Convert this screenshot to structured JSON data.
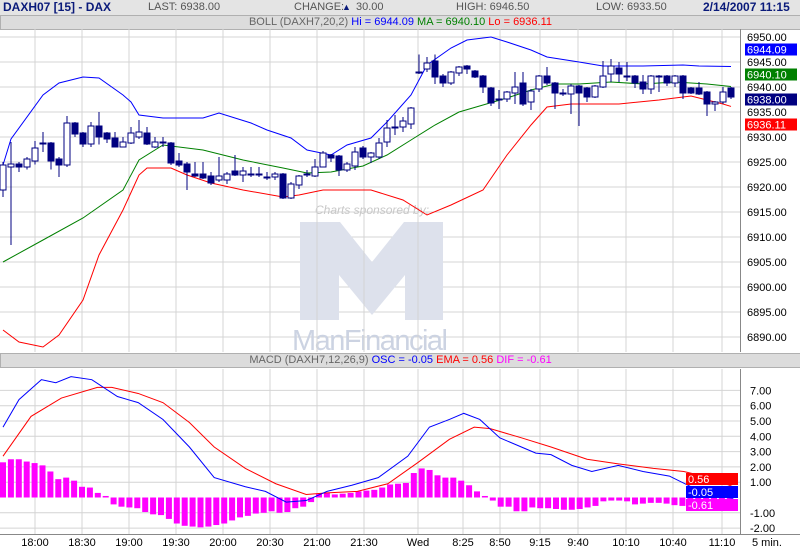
{
  "header": {
    "symbol": "DAXH07 [15] - DAX",
    "last": "LAST: 6938.00",
    "change_label": "CHANGE:",
    "change_value": "30.00",
    "high": "HIGH: 6946.50",
    "low": "LOW: 6933.50",
    "datetime": "2/14/2007 11:15"
  },
  "boll_legend": {
    "name": "BOLL (DAXH7,20,2)",
    "hi": "Hi = 6944.09",
    "ma": "MA = 6940.10",
    "lo": "Lo = 6936.11"
  },
  "macd_legend": {
    "name": "MACD (DAXH7,12,26,9)",
    "osc": "OSC = -0.05",
    "ema": "EMA = 0.56",
    "dif": "DIF = -0.61"
  },
  "price_axis": [
    "6950.00",
    "6945.00",
    "6940.00",
    "6935.00",
    "6930.00",
    "6925.00",
    "6920.00",
    "6915.00",
    "6910.00",
    "6905.00",
    "6900.00",
    "6895.00",
    "6890.00"
  ],
  "price_markers": {
    "hi": "6944.09",
    "ma": "6940.10",
    "last": "6938.00",
    "lo": "6936.11"
  },
  "macd_axis": [
    "7.00",
    "6.00",
    "5.00",
    "4.00",
    "3.00",
    "2.00",
    "1.00",
    "-1.00",
    "-2.00"
  ],
  "macd_markers": {
    "ema": "0.56",
    "osc": "-0.05",
    "dif": "-0.61"
  },
  "time_axis": [
    "18:00",
    "18:30",
    "19:00",
    "19:30",
    "20:00",
    "20:30",
    "21:00",
    "21:30",
    "Wed",
    "8:25",
    "8:50",
    "9:15",
    "9:40",
    "10:10",
    "10:40",
    "11:10"
  ],
  "interval": "5 min.",
  "watermark": {
    "caption": "Charts sponsored by:",
    "brand": "ManFinancial"
  },
  "colors": {
    "hi": "#0000ff",
    "ma": "#008000",
    "lo": "#ff0000",
    "candle": "#000080",
    "dif": "#ff00ff"
  },
  "chart_data": {
    "type": "candlestick",
    "ylim": [
      6887,
      6953
    ],
    "candles_ohlc": [
      [
        6919.4,
        6925,
        6918,
        6924.4
      ],
      [
        6924,
        6929,
        6908.4,
        6924.6
      ],
      [
        6924.6,
        6925,
        6923,
        6924
      ],
      [
        6924,
        6926,
        6923.5,
        6925.6
      ],
      [
        6925.2,
        6929.2,
        6924.5,
        6927.8
      ],
      [
        6928.8,
        6931,
        6927,
        6928.8
      ],
      [
        6928.8,
        6929,
        6923.5,
        6925.2
      ],
      [
        6925.6,
        6926,
        6922,
        6924.4
      ],
      [
        6924.4,
        6934.2,
        6924,
        6932.8
      ],
      [
        6932.8,
        6933,
        6930,
        6930.6
      ],
      [
        6930.8,
        6931,
        6928,
        6928.6
      ],
      [
        6928.6,
        6933,
        6928,
        6932.2
      ],
      [
        6932.2,
        6935,
        6928.5,
        6930
      ],
      [
        6930.8,
        6931,
        6928.8,
        6929.6
      ],
      [
        6929.8,
        6931,
        6928,
        6928
      ],
      [
        6928,
        6930,
        6928,
        6929
      ],
      [
        6928.8,
        6932,
        6928.6,
        6930.8
      ],
      [
        6930,
        6933.4,
        6929.6,
        6931
      ],
      [
        6930.8,
        6932,
        6928.4,
        6928.6
      ],
      [
        6928,
        6930,
        6927.8,
        6929
      ],
      [
        6929,
        6930,
        6928,
        6928.8
      ],
      [
        6928.8,
        6929,
        6924.4,
        6924.8
      ],
      [
        6925.2,
        6926.8,
        6924,
        6924.4
      ],
      [
        6924.6,
        6925,
        6919.4,
        6923
      ],
      [
        6922.6,
        6925,
        6922,
        6922.2
      ],
      [
        6922.6,
        6925,
        6921.6,
        6921.8
      ],
      [
        6922.2,
        6923,
        6920.4,
        6920.8
      ],
      [
        6921.4,
        6926,
        6921,
        6922.2
      ],
      [
        6921.4,
        6923,
        6920.6,
        6922.6
      ],
      [
        6923.2,
        6926.4,
        6922.2,
        6922.4
      ],
      [
        6922.4,
        6924,
        6921,
        6923.2
      ],
      [
        6922.6,
        6924,
        6922,
        6922.6
      ],
      [
        6922.6,
        6924,
        6922,
        6922.6
      ],
      [
        6922,
        6923,
        6921.4,
        6922
      ],
      [
        6922,
        6923,
        6921.4,
        6922.6
      ],
      [
        6922.6,
        6922.8,
        6917.6,
        6917.8
      ],
      [
        6917.8,
        6921,
        6917.6,
        6920.6
      ],
      [
        6920.4,
        6922.4,
        6919.6,
        6922.2
      ],
      [
        6922.6,
        6923.4,
        6922,
        6922.6
      ],
      [
        6922.2,
        6925.6,
        6922,
        6924
      ],
      [
        6924,
        6927.2,
        6924,
        6926.8
      ],
      [
        6926.4,
        6926.6,
        6925,
        6925.8
      ],
      [
        6926.2,
        6926.4,
        6922.2,
        6923.4
      ],
      [
        6923.4,
        6925,
        6923,
        6924.6
      ],
      [
        6924.2,
        6928,
        6923.4,
        6927
      ],
      [
        6927.8,
        6928.2,
        6925.6,
        6926
      ],
      [
        6926,
        6927,
        6924.8,
        6926.8
      ],
      [
        6926,
        6929.8,
        6925.6,
        6928.8
      ],
      [
        6929,
        6933.4,
        6928,
        6931.8
      ],
      [
        6932,
        6934.4,
        6930.4,
        6932
      ],
      [
        6932,
        6934,
        6931,
        6933.2
      ],
      [
        6932.6,
        6936,
        6931.6,
        6935.8
      ],
      [
        6943,
        6946.5,
        6942.6,
        6943
      ],
      [
        6943.6,
        6946,
        6943,
        6944.8
      ],
      [
        6945.2,
        6946.5,
        6940.6,
        6942
      ],
      [
        6942.2,
        6942.6,
        6940,
        6940.8
      ],
      [
        6940.8,
        6943.2,
        6940.4,
        6943
      ],
      [
        6942.8,
        6944.2,
        6942.2,
        6944
      ],
      [
        6944.2,
        6944.4,
        6942.6,
        6943.6
      ],
      [
        6943.2,
        6943.4,
        6941.8,
        6942
      ],
      [
        6942.2,
        6942.4,
        6938.8,
        6940
      ],
      [
        6939.8,
        6940,
        6936.2,
        6936.8
      ],
      [
        6937.6,
        6939.4,
        6935.6,
        6937.6
      ],
      [
        6937.6,
        6939.2,
        6937,
        6939
      ],
      [
        6938.8,
        6943,
        6936.6,
        6940
      ],
      [
        6940.8,
        6943,
        6936.2,
        6936.6
      ],
      [
        6937,
        6939.6,
        6935.4,
        6939.2
      ],
      [
        6939.6,
        6942.4,
        6939,
        6942.2
      ],
      [
        6942.2,
        6944,
        6940.4,
        6940.8
      ],
      [
        6940.8,
        6941,
        6935.6,
        6938.8
      ],
      [
        6938.8,
        6939.6,
        6938.2,
        6938.8
      ],
      [
        6938.6,
        6940.6,
        6934.6,
        6940.2
      ],
      [
        6940.2,
        6940.4,
        6932.2,
        6938.8
      ],
      [
        6939.8,
        6940,
        6937,
        6938
      ],
      [
        6938,
        6940.4,
        6937.8,
        6940.2
      ],
      [
        6940,
        6945.2,
        6939.8,
        6942.2
      ],
      [
        6942.6,
        6945.6,
        6941,
        6944.2
      ],
      [
        6943.8,
        6945,
        6941,
        6942.6
      ],
      [
        6942.2,
        6945,
        6941.2,
        6942.2
      ],
      [
        6942.2,
        6942.4,
        6939.8,
        6940.8
      ],
      [
        6941,
        6942.4,
        6938.6,
        6939.6
      ],
      [
        6939.6,
        6942.4,
        6938.6,
        6942.2
      ],
      [
        6942.2,
        6942.4,
        6939,
        6942.2
      ],
      [
        6942.2,
        6942.4,
        6940.2,
        6940.8
      ],
      [
        6940.8,
        6942.4,
        6940,
        6942.2
      ],
      [
        6942.2,
        6942.4,
        6937.6,
        6938.8
      ],
      [
        6939.8,
        6940,
        6938.6,
        6938.8
      ],
      [
        6939.8,
        6941,
        6938.4,
        6938.6
      ],
      [
        6939,
        6939.2,
        6934.2,
        6936.6
      ],
      [
        6936.6,
        6937.2,
        6935.2,
        6937
      ],
      [
        6937,
        6940,
        6936.6,
        6939
      ],
      [
        6939.8,
        6940,
        6937.6,
        6938
      ]
    ],
    "boll_hi": [
      [
        0,
        6924.4
      ],
      [
        1,
        6929.6
      ],
      [
        5,
        6938.4
      ],
      [
        7,
        6940.8
      ],
      [
        10,
        6942
      ],
      [
        12,
        6941.8
      ],
      [
        15,
        6938.4
      ],
      [
        16,
        6937
      ],
      [
        17,
        6934.4
      ],
      [
        20,
        6933.8
      ],
      [
        25,
        6933.8
      ],
      [
        27,
        6934.8
      ],
      [
        31,
        6932.8
      ],
      [
        33,
        6931.4
      ],
      [
        36,
        6929.8
      ],
      [
        38,
        6927.4
      ],
      [
        41,
        6926.4
      ],
      [
        43,
        6928.4
      ],
      [
        46,
        6929.8
      ],
      [
        48,
        6933
      ],
      [
        51,
        6938.4
      ],
      [
        53,
        6944.4
      ],
      [
        56,
        6947.8
      ],
      [
        58,
        6949.4
      ],
      [
        61,
        6950
      ],
      [
        63,
        6949
      ],
      [
        66,
        6947.4
      ],
      [
        68,
        6946
      ],
      [
        72,
        6945
      ],
      [
        75,
        6944.2
      ],
      [
        80,
        6944.2
      ],
      [
        85,
        6944.4
      ],
      [
        87,
        6944.2
      ],
      [
        91,
        6944.09
      ]
    ],
    "boll_ma": [
      [
        0,
        6905
      ],
      [
        5,
        6909.4
      ],
      [
        10,
        6913.8
      ],
      [
        15,
        6919.4
      ],
      [
        17,
        6925.4
      ],
      [
        20,
        6928.4
      ],
      [
        25,
        6927.4
      ],
      [
        30,
        6925.4
      ],
      [
        35,
        6923.8
      ],
      [
        38,
        6922.8
      ],
      [
        41,
        6923
      ],
      [
        45,
        6924.2
      ],
      [
        48,
        6926.4
      ],
      [
        51,
        6929.4
      ],
      [
        54,
        6932.4
      ],
      [
        57,
        6935
      ],
      [
        60,
        6936.4
      ],
      [
        63,
        6937.8
      ],
      [
        66,
        6939.4
      ],
      [
        69,
        6940.6
      ],
      [
        72,
        6940.6
      ],
      [
        76,
        6941
      ],
      [
        80,
        6940.6
      ],
      [
        84,
        6941
      ],
      [
        88,
        6940.6
      ],
      [
        91,
        6940.1
      ]
    ],
    "boll_lo": [
      [
        0,
        6891.4
      ],
      [
        2,
        6889
      ],
      [
        5,
        6888
      ],
      [
        7,
        6890.4
      ],
      [
        10,
        6897.4
      ],
      [
        12,
        6906.4
      ],
      [
        15,
        6915.4
      ],
      [
        17,
        6922.4
      ],
      [
        18,
        6923.8
      ],
      [
        21,
        6923.8
      ],
      [
        23,
        6922.4
      ],
      [
        26,
        6920.8
      ],
      [
        30,
        6919.4
      ],
      [
        35,
        6918
      ],
      [
        37,
        6918.4
      ],
      [
        40,
        6919.4
      ],
      [
        46,
        6919.4
      ],
      [
        50,
        6917.4
      ],
      [
        53,
        6914.4
      ],
      [
        56,
        6916.4
      ],
      [
        60,
        6919.4
      ],
      [
        63,
        6926.4
      ],
      [
        66,
        6932.4
      ],
      [
        68,
        6936
      ],
      [
        71,
        6936.6
      ],
      [
        77,
        6936.6
      ],
      [
        82,
        6937.4
      ],
      [
        86,
        6938.2
      ],
      [
        90,
        6936.6
      ],
      [
        91,
        6936.11
      ]
    ],
    "macd_ylim": [
      -2.4,
      8.1
    ],
    "osc": [
      [
        0,
        4.6
      ],
      [
        2,
        6.4
      ],
      [
        4.8,
        7.7
      ],
      [
        6.6,
        7.5
      ],
      [
        8.5,
        7.9
      ],
      [
        11.1,
        7.7
      ],
      [
        14.3,
        6.6
      ],
      [
        16.9,
        6.2
      ],
      [
        20,
        5.1
      ],
      [
        23.3,
        3.3
      ],
      [
        26.4,
        1.3
      ],
      [
        30.3,
        0.7
      ],
      [
        32.8,
        0.4
      ],
      [
        35.4,
        -0.3
      ],
      [
        37.9,
        -0.2
      ],
      [
        40.5,
        0.4
      ],
      [
        43.6,
        0.8
      ],
      [
        46.9,
        1.3
      ],
      [
        50.6,
        2.7
      ],
      [
        53.3,
        4.6
      ],
      [
        55.8,
        5.1
      ],
      [
        57.6,
        5.5
      ],
      [
        59.6,
        5.1
      ],
      [
        62.1,
        3.9
      ],
      [
        64.8,
        3.3
      ],
      [
        66.6,
        2.9
      ],
      [
        68.5,
        2.8
      ],
      [
        71.1,
        2.1
      ],
      [
        73.6,
        1.7
      ],
      [
        76.9,
        2.1
      ],
      [
        80,
        1.7
      ],
      [
        83.3,
        1.4
      ],
      [
        86.4,
        0.6
      ],
      [
        89,
        0.1
      ],
      [
        91.3,
        -0.05
      ]
    ],
    "ema": [
      [
        0,
        2.7
      ],
      [
        3.5,
        5.3
      ],
      [
        7.3,
        6.5
      ],
      [
        11.8,
        7.2
      ],
      [
        13.6,
        7.2
      ],
      [
        16.9,
        6.8
      ],
      [
        20,
        6.2
      ],
      [
        23.3,
        4.9
      ],
      [
        26.4,
        3.3
      ],
      [
        30.3,
        1.9
      ],
      [
        34.1,
        0.9
      ],
      [
        37.9,
        0.2
      ],
      [
        40.5,
        0.3
      ],
      [
        44.3,
        0.4
      ],
      [
        48.1,
        0.9
      ],
      [
        51.9,
        2.3
      ],
      [
        55.8,
        3.8
      ],
      [
        58.9,
        4.6
      ],
      [
        60.9,
        4.5
      ],
      [
        64.8,
        3.9
      ],
      [
        68.5,
        3.3
      ],
      [
        73,
        2.5
      ],
      [
        76.9,
        2.2
      ],
      [
        81.3,
        1.9
      ],
      [
        85.1,
        1.7
      ],
      [
        88.3,
        1.3
      ],
      [
        91.3,
        0.7
      ]
    ],
    "dif": [
      2.3,
      2.5,
      2.5,
      2.35,
      2.25,
      2.1,
      1.7,
      1.2,
      1.3,
      1.1,
      0.7,
      0.65,
      0.3,
      0.1,
      -0.45,
      -0.6,
      -0.65,
      -0.7,
      -0.95,
      -1.1,
      -1.15,
      -1.4,
      -1.7,
      -1.85,
      -1.9,
      -1.95,
      -1.9,
      -1.8,
      -1.7,
      -1.5,
      -1.3,
      -1.2,
      -1.05,
      -1,
      -0.9,
      -1,
      -0.95,
      -0.7,
      -0.6,
      -0.3,
      0.25,
      0.3,
      0.2,
      0.25,
      0.3,
      0.4,
      0.45,
      0.5,
      0.65,
      0.85,
      0.9,
      0.95,
      1.6,
      1.9,
      1.8,
      1.45,
      1.3,
      1.3,
      1.1,
      0.8,
      0.4,
      0.1,
      -0.2,
      -0.6,
      -0.6,
      -0.9,
      -0.9,
      -0.65,
      -0.7,
      -0.7,
      -0.75,
      -0.8,
      -0.8,
      -0.75,
      -0.65,
      -0.55,
      -0.25,
      -0.2,
      -0.2,
      -0.25,
      -0.45,
      -0.4,
      -0.35,
      -0.35,
      -0.4,
      -0.5,
      -0.55,
      -0.6,
      -0.6,
      -0.8,
      -0.8,
      -0.65,
      -0.65
    ]
  }
}
